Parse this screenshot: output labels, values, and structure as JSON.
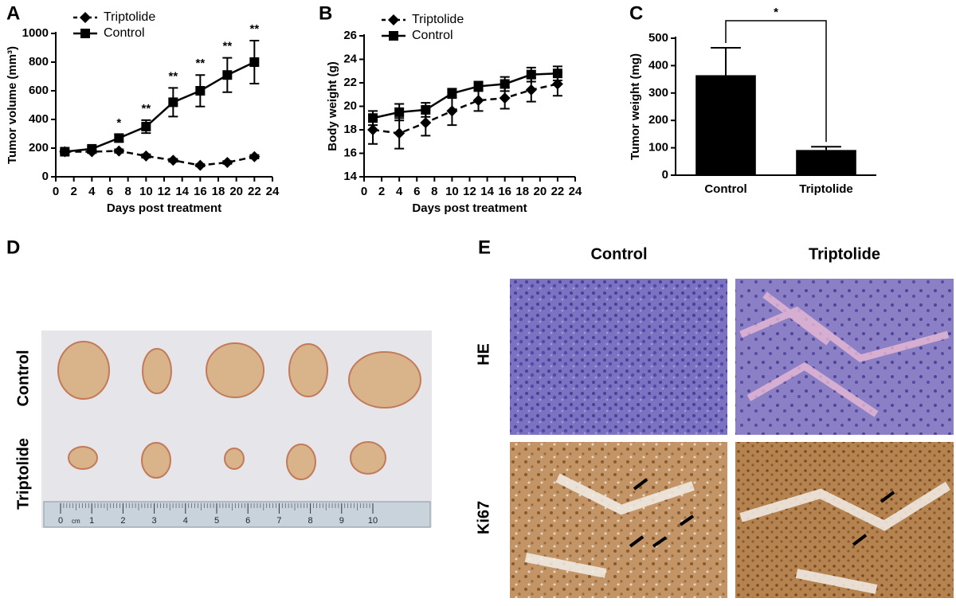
{
  "chart_data": [
    {
      "type": "line",
      "label": "A",
      "ylabel": "Tumor volume (mm³)",
      "xlabel": "Days post treatment",
      "xlim": [
        0,
        24
      ],
      "xticks": [
        0,
        2,
        4,
        6,
        8,
        10,
        12,
        14,
        16,
        18,
        20,
        22,
        24
      ],
      "ylim": [
        0,
        1000
      ],
      "yticks": [
        0,
        200,
        400,
        600,
        800,
        1000
      ],
      "x": [
        1,
        4,
        7,
        10,
        13,
        16,
        19,
        22
      ],
      "legend": "upper left",
      "series": [
        {
          "name": "Triptolide",
          "color": "#000000",
          "linestyle": "dashed",
          "marker": "diamond",
          "values": [
            175,
            175,
            180,
            145,
            115,
            80,
            100,
            140
          ],
          "errors": [
            10,
            10,
            12,
            12,
            10,
            8,
            10,
            12
          ]
        },
        {
          "name": "Control",
          "color": "#000000",
          "linestyle": "solid",
          "marker": "square",
          "values": [
            175,
            195,
            270,
            350,
            520,
            600,
            710,
            800
          ],
          "errors": [
            10,
            15,
            25,
            45,
            100,
            110,
            120,
            150
          ]
        }
      ],
      "annotations": [
        {
          "x": 7,
          "text": "*"
        },
        {
          "x": 10,
          "text": "**"
        },
        {
          "x": 13,
          "text": "**"
        },
        {
          "x": 16,
          "text": "**"
        },
        {
          "x": 19,
          "text": "**"
        },
        {
          "x": 22,
          "text": "**"
        }
      ]
    },
    {
      "type": "line",
      "label": "B",
      "ylabel": "Body weight (g)",
      "xlabel": "Days post treatment",
      "xlim": [
        0,
        24
      ],
      "xticks": [
        0,
        2,
        4,
        6,
        8,
        10,
        12,
        14,
        16,
        18,
        20,
        22,
        24
      ],
      "ylim": [
        14,
        26
      ],
      "yticks": [
        14,
        16,
        18,
        20,
        22,
        24,
        26
      ],
      "x": [
        1,
        4,
        7,
        10,
        13,
        16,
        19,
        22
      ],
      "legend": "upper left",
      "series": [
        {
          "name": "Triptolide",
          "color": "#000000",
          "linestyle": "dashed",
          "marker": "diamond",
          "values": [
            18.0,
            17.7,
            18.6,
            19.6,
            20.5,
            20.7,
            21.4,
            21.9
          ],
          "errors": [
            1.2,
            1.3,
            1.1,
            1.2,
            0.9,
            0.9,
            1.0,
            1.0
          ]
        },
        {
          "name": "Control",
          "color": "#000000",
          "linestyle": "solid",
          "marker": "square",
          "values": [
            19.0,
            19.5,
            19.7,
            21.1,
            21.7,
            21.9,
            22.7,
            22.8
          ],
          "errors": [
            0.6,
            0.7,
            0.6,
            0.4,
            0.4,
            0.6,
            0.6,
            0.6
          ]
        }
      ]
    },
    {
      "type": "bar",
      "label": "C",
      "ylabel": "Tumor weight (mg)",
      "categories": [
        "Control",
        "Triptolide"
      ],
      "values": [
        365,
        92
      ],
      "errors": [
        100,
        12
      ],
      "color": "#000000",
      "ylim": [
        0,
        500
      ],
      "yticks": [
        0,
        100,
        200,
        300,
        400,
        500
      ],
      "annotation": "*"
    }
  ],
  "panels": {
    "D": {
      "label": "D",
      "rows": [
        "Control",
        "Triptolide"
      ],
      "ruler": [
        "0",
        "1",
        "2",
        "3",
        "4",
        "5",
        "6",
        "7",
        "8",
        "9",
        "10"
      ],
      "ruler_unit": "cm"
    },
    "E": {
      "label": "E",
      "columns": [
        "Control",
        "Triptolide"
      ],
      "rows": [
        "HE",
        "Ki67"
      ]
    }
  }
}
